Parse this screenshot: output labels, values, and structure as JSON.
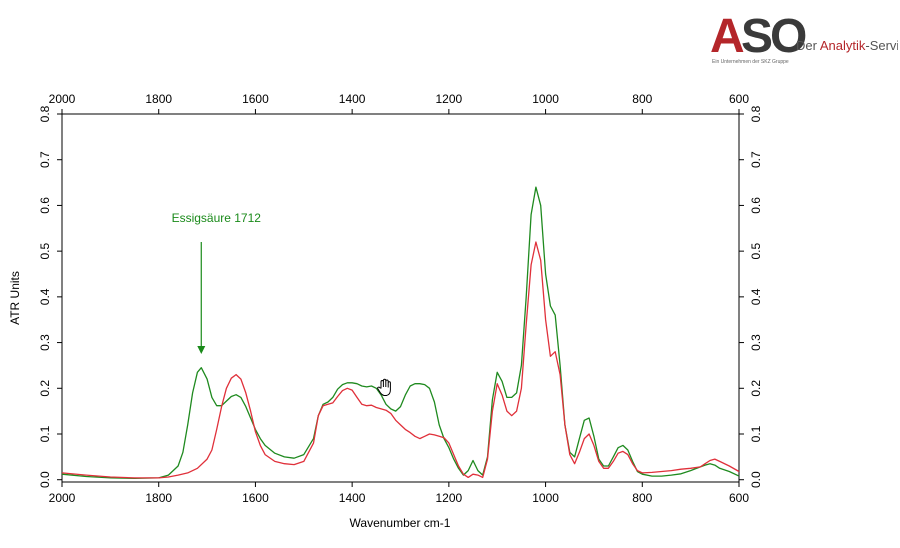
{
  "logo": {
    "brand": "ASO",
    "tagline_prefix": "Der ",
    "tagline_highlight": "Analytik",
    "tagline_suffix": "-Service",
    "subline": "Ein Unternehmen der SKZ Gruppe",
    "colors": {
      "a": "#b4262a",
      "so": "#3a3a3a",
      "tagline": "#555555",
      "highlight": "#b4262a"
    }
  },
  "chart_data": {
    "type": "line",
    "xlabel": "Wavenumber cm-1",
    "ylabel": "ATR Units",
    "xlim": [
      2000,
      600
    ],
    "ylim": [
      -0.005,
      0.8
    ],
    "x_reversed": true,
    "x_ticks": [
      2000,
      1800,
      1600,
      1400,
      1200,
      1000,
      800,
      600
    ],
    "y_ticks": [
      0.0,
      0.1,
      0.2,
      0.3,
      0.4,
      0.5,
      0.6,
      0.7,
      0.8
    ],
    "mirror_axes": true,
    "grid": false,
    "legend": "none",
    "annotations": [
      {
        "text": "Essigsäure 1712",
        "x": 1712,
        "arrow_from_y": 0.52,
        "arrow_to_y": 0.275,
        "color": "#1a8a1a"
      }
    ],
    "series": [
      {
        "color": "#1f8a1f",
        "x": [
          2000,
          1950,
          1900,
          1850,
          1800,
          1780,
          1760,
          1750,
          1740,
          1730,
          1720,
          1712,
          1700,
          1690,
          1680,
          1670,
          1660,
          1650,
          1640,
          1630,
          1620,
          1610,
          1600,
          1590,
          1580,
          1560,
          1540,
          1520,
          1500,
          1480,
          1470,
          1460,
          1450,
          1440,
          1430,
          1420,
          1410,
          1400,
          1390,
          1380,
          1370,
          1360,
          1350,
          1340,
          1330,
          1320,
          1310,
          1300,
          1290,
          1280,
          1270,
          1260,
          1250,
          1240,
          1230,
          1220,
          1210,
          1200,
          1190,
          1180,
          1170,
          1160,
          1150,
          1140,
          1130,
          1120,
          1110,
          1100,
          1090,
          1080,
          1070,
          1060,
          1050,
          1040,
          1030,
          1020,
          1010,
          1000,
          990,
          980,
          970,
          960,
          950,
          940,
          930,
          920,
          910,
          900,
          890,
          880,
          870,
          860,
          850,
          840,
          830,
          820,
          810,
          800,
          780,
          760,
          740,
          720,
          700,
          680,
          670,
          660,
          650,
          640,
          620,
          600
        ],
        "y": [
          0.012,
          0.007,
          0.004,
          0.003,
          0.004,
          0.01,
          0.03,
          0.06,
          0.12,
          0.19,
          0.235,
          0.245,
          0.22,
          0.18,
          0.162,
          0.162,
          0.172,
          0.182,
          0.186,
          0.18,
          0.16,
          0.135,
          0.11,
          0.09,
          0.075,
          0.058,
          0.05,
          0.047,
          0.055,
          0.09,
          0.14,
          0.165,
          0.17,
          0.18,
          0.198,
          0.208,
          0.212,
          0.212,
          0.21,
          0.205,
          0.203,
          0.205,
          0.2,
          0.185,
          0.165,
          0.155,
          0.15,
          0.16,
          0.185,
          0.205,
          0.21,
          0.21,
          0.208,
          0.2,
          0.17,
          0.12,
          0.09,
          0.07,
          0.045,
          0.025,
          0.01,
          0.02,
          0.042,
          0.02,
          0.01,
          0.05,
          0.175,
          0.235,
          0.215,
          0.18,
          0.18,
          0.19,
          0.25,
          0.4,
          0.58,
          0.64,
          0.6,
          0.45,
          0.38,
          0.36,
          0.25,
          0.12,
          0.06,
          0.05,
          0.09,
          0.13,
          0.135,
          0.095,
          0.045,
          0.03,
          0.03,
          0.05,
          0.07,
          0.075,
          0.065,
          0.04,
          0.018,
          0.012,
          0.008,
          0.008,
          0.01,
          0.013,
          0.02,
          0.028,
          0.032,
          0.035,
          0.032,
          0.025,
          0.018,
          0.008
        ]
      },
      {
        "color": "#e0303a",
        "x": [
          2000,
          1950,
          1900,
          1850,
          1800,
          1780,
          1760,
          1740,
          1720,
          1700,
          1690,
          1680,
          1670,
          1660,
          1650,
          1640,
          1630,
          1620,
          1610,
          1600,
          1590,
          1580,
          1560,
          1540,
          1520,
          1500,
          1480,
          1470,
          1460,
          1450,
          1440,
          1430,
          1420,
          1410,
          1400,
          1390,
          1380,
          1370,
          1360,
          1350,
          1340,
          1330,
          1320,
          1310,
          1300,
          1290,
          1280,
          1270,
          1260,
          1250,
          1240,
          1230,
          1220,
          1210,
          1200,
          1190,
          1180,
          1170,
          1160,
          1150,
          1140,
          1130,
          1120,
          1110,
          1100,
          1090,
          1080,
          1070,
          1060,
          1050,
          1040,
          1030,
          1020,
          1010,
          1000,
          990,
          980,
          970,
          960,
          950,
          940,
          930,
          920,
          910,
          900,
          890,
          880,
          870,
          860,
          850,
          840,
          830,
          820,
          810,
          800,
          780,
          760,
          740,
          720,
          700,
          680,
          670,
          660,
          650,
          640,
          620,
          600
        ],
        "y": [
          0.015,
          0.01,
          0.006,
          0.004,
          0.004,
          0.006,
          0.01,
          0.015,
          0.025,
          0.045,
          0.065,
          0.11,
          0.16,
          0.2,
          0.222,
          0.23,
          0.22,
          0.19,
          0.15,
          0.105,
          0.075,
          0.055,
          0.04,
          0.035,
          0.033,
          0.04,
          0.08,
          0.14,
          0.162,
          0.165,
          0.168,
          0.182,
          0.195,
          0.2,
          0.196,
          0.18,
          0.165,
          0.162,
          0.163,
          0.158,
          0.155,
          0.152,
          0.145,
          0.13,
          0.12,
          0.11,
          0.103,
          0.095,
          0.09,
          0.095,
          0.1,
          0.098,
          0.095,
          0.092,
          0.08,
          0.055,
          0.03,
          0.012,
          0.005,
          0.012,
          0.01,
          0.005,
          0.045,
          0.15,
          0.21,
          0.185,
          0.15,
          0.14,
          0.15,
          0.2,
          0.34,
          0.47,
          0.52,
          0.48,
          0.35,
          0.27,
          0.28,
          0.23,
          0.12,
          0.055,
          0.035,
          0.06,
          0.09,
          0.1,
          0.075,
          0.04,
          0.025,
          0.025,
          0.04,
          0.058,
          0.062,
          0.055,
          0.035,
          0.02,
          0.015,
          0.016,
          0.018,
          0.02,
          0.023,
          0.025,
          0.028,
          0.035,
          0.042,
          0.045,
          0.04,
          0.03,
          0.018
        ]
      }
    ]
  }
}
